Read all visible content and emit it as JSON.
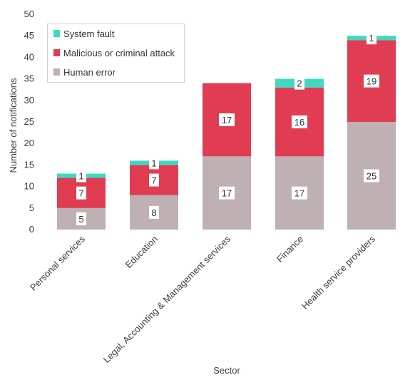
{
  "chart_data": {
    "type": "bar",
    "stacked": true,
    "categories": [
      "Personal services",
      "Education",
      "Legal, Accounting & Management services",
      "Finance",
      "Health service providers"
    ],
    "series": [
      {
        "name": "Human error",
        "color": "#bfb0b3",
        "values": [
          5,
          8,
          17,
          17,
          25
        ]
      },
      {
        "name": "Malicious or criminal attack",
        "color": "#e03c52",
        "values": [
          7,
          7,
          17,
          16,
          19
        ]
      },
      {
        "name": "System fault",
        "color": "#3fd9c1",
        "values": [
          1,
          1,
          0,
          2,
          1
        ]
      }
    ],
    "legend_order": [
      "System fault",
      "Malicious or criminal attack",
      "Human error"
    ],
    "legend_position": "top-left",
    "xlabel": "Sector",
    "ylabel": "Number of notifications",
    "ylim": [
      0,
      50
    ],
    "yticks": [
      0,
      5,
      10,
      15,
      20,
      25,
      30,
      35,
      40,
      45,
      50
    ],
    "grid": false
  }
}
